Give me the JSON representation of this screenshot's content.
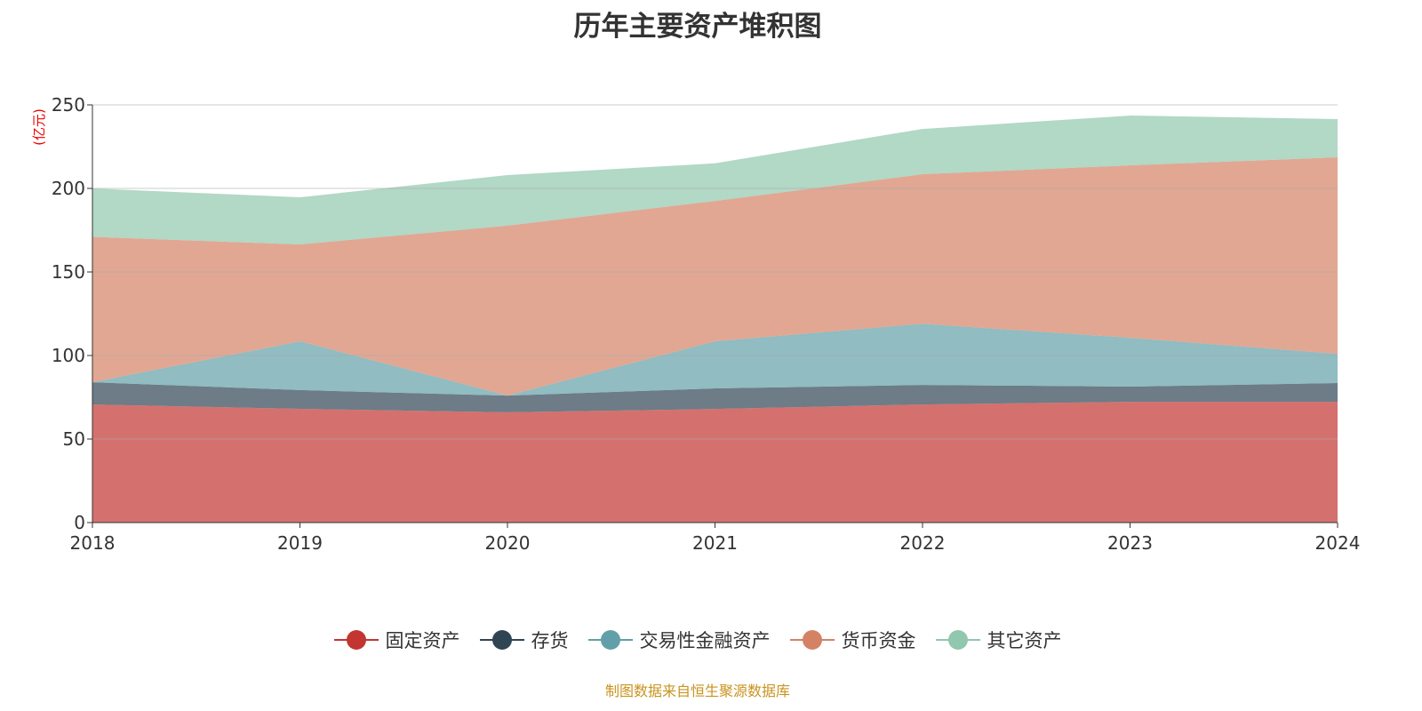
{
  "title": "历年主要资产堆积图",
  "source": "制图数据来自恒生聚源数据库",
  "chart_data": {
    "type": "area",
    "stacked": true,
    "title": "历年主要资产堆积图",
    "ylabel": "(亿元)",
    "xlabel": "",
    "x": [
      "2018",
      "2019",
      "2020",
      "2021",
      "2022",
      "2023",
      "2024"
    ],
    "ylim": [
      0,
      250
    ],
    "yticks": [
      "0",
      "50",
      "100",
      "150",
      "200",
      "250"
    ],
    "grid": true,
    "legend_position": "bottom",
    "series": [
      {
        "name": "固定资产",
        "color": "#c23531",
        "values": [
          70.7,
          68.1,
          66.0,
          68.0,
          70.7,
          72.3,
          72.3
        ]
      },
      {
        "name": "存货",
        "color": "#2f4554",
        "values": [
          13.3,
          11.2,
          10.0,
          12.3,
          11.7,
          9.1,
          11.2
        ]
      },
      {
        "name": "交易性金融资产",
        "color": "#61a0a8",
        "values": [
          0,
          29.2,
          0,
          28.2,
          36.6,
          29.2,
          17.5
        ]
      },
      {
        "name": "货币资金",
        "color": "#d48265",
        "values": [
          87.0,
          58.0,
          101.7,
          84.0,
          89.5,
          103.2,
          117.6
        ]
      },
      {
        "name": "其它资产",
        "color": "#91c7ae",
        "values": [
          29.0,
          28.2,
          30.3,
          22.5,
          27.1,
          29.8,
          22.9
        ]
      }
    ]
  }
}
